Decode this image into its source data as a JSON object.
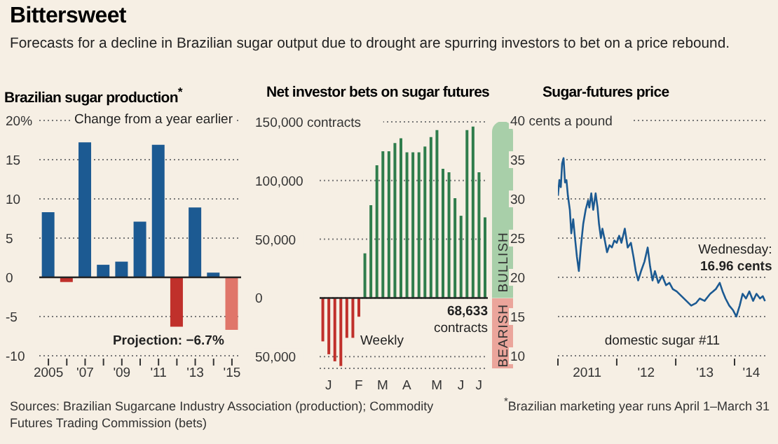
{
  "chart_data": [
    {
      "type": "other",
      "title": "Bittersweet",
      "subtitle": "Forecasts for a decline in Brazilian sugar output due to drought are spurring investors to bet on a price rebound.",
      "annotations": [
        "Sources: Brazilian Sugarcane Industry Association (production); Commodity Futures Trading Commission (bets)",
        "$^{*}$Brazilian marketing year runs April 1–March 31"
      ]
    },
    {
      "type": "bar",
      "title": "Brazilian sugar production$^{*}$",
      "categories": [
        "2005",
        null,
        "'07",
        null,
        "'09",
        null,
        "'11",
        null,
        "'13",
        null,
        "'15"
      ],
      "values": [
        8.3,
        -0.6,
        17.2,
        1.6,
        2.0,
        7.1,
        16.9,
        -6.3,
        8.9,
        0.6,
        -6.7
      ],
      "colors": [
        "#1c5a92",
        "#c0302b",
        "#1c5a92",
        "#1c5a92",
        "#1c5a92",
        "#1c5a92",
        "#1c5a92",
        "#c0302b",
        "#1c5a92",
        "#1c5a92",
        "#e0766a"
      ],
      "ylim": [
        -10,
        20
      ],
      "yticks": [
        -10,
        -5,
        0,
        5,
        10,
        15,
        {
          "value": 20,
          "label": "20%"
        }
      ],
      "grid": "y",
      "ref_lines": [
        {
          "axis": "y",
          "value": 0,
          "color": "#222222"
        }
      ],
      "annotations": [
        "Change from a year earlier",
        {
          "text": "Projection: −6.7%",
          "x": "'15",
          "y": -6.7
        }
      ]
    },
    {
      "type": "bar",
      "title": "Net investor bets on sugar futures",
      "categories": [
        null,
        "J",
        null,
        null,
        null,
        null,
        "F",
        null,
        null,
        null,
        "M",
        null,
        null,
        null,
        "A",
        null,
        null,
        null,
        null,
        "M",
        null,
        null,
        null,
        "J",
        null,
        null,
        "J",
        null
      ],
      "values": [
        -37000,
        -48000,
        -54000,
        -58000,
        -34000,
        -34000,
        -16000,
        38000,
        79000,
        113000,
        125000,
        125000,
        132000,
        136000,
        124000,
        124000,
        124000,
        129000,
        137000,
        143000,
        110000,
        107000,
        85000,
        70000,
        143000,
        146000,
        107000,
        68633
      ],
      "colors": [
        "#c0302b",
        "#c0302b",
        "#c0302b",
        "#c0302b",
        "#c0302b",
        "#c0302b",
        "#c0302b",
        "#2f7d4c",
        "#2f7d4c",
        "#2f7d4c",
        "#2f7d4c",
        "#2f7d4c",
        "#2f7d4c",
        "#2f7d4c",
        "#2f7d4c",
        "#2f7d4c",
        "#2f7d4c",
        "#2f7d4c",
        "#2f7d4c",
        "#2f7d4c",
        "#2f7d4c",
        "#2f7d4c",
        "#2f7d4c",
        "#2f7d4c",
        "#2f7d4c",
        "#2f7d4c",
        "#2f7d4c",
        "#2f7d4c"
      ],
      "ylim": [
        -60000,
        150000
      ],
      "yticks": [
        {
          "value": -50000,
          "label": "50,000"
        },
        0,
        {
          "value": 50000,
          "label": "50,000"
        },
        {
          "value": 100000,
          "label": "100,000"
        },
        {
          "value": 150000,
          "label": "150,000 contracts"
        }
      ],
      "grid": "y",
      "ref_lines": [
        {
          "axis": "y",
          "value": 0,
          "color": "#222222"
        }
      ],
      "annotations": [
        "Weekly",
        "68,633 contracts",
        "BULLISH",
        "BEARISH"
      ]
    },
    {
      "type": "line",
      "title": "Sugar-futures price",
      "color": "#1c5a92",
      "x": [
        "2011-01-01",
        "2011-01-10",
        "2011-01-19",
        "2011-01-27",
        "2011-02-05",
        "2011-02-14",
        "2011-02-23",
        "2011-03-04",
        "2011-03-16",
        "2011-03-25",
        "2011-04-06",
        "2011-04-17",
        "2011-04-29",
        "2011-05-11",
        "2011-05-23",
        "2011-06-07",
        "2011-06-22",
        "2011-07-07",
        "2011-07-15",
        "2011-07-27",
        "2011-08-08",
        "2011-08-23",
        "2011-09-04",
        "2011-09-13",
        "2011-09-25",
        "2011-10-04",
        "2011-10-19",
        "2011-11-02",
        "2011-11-17",
        "2011-12-02",
        "2011-12-17",
        "2012-01-01",
        "2012-01-16",
        "2012-01-30",
        "2012-02-20",
        "2012-03-09",
        "2012-03-29",
        "2012-04-14",
        "2012-04-28",
        "2012-05-13",
        "2012-05-31",
        "2012-06-21",
        "2012-07-11",
        "2012-07-26",
        "2012-08-10",
        "2012-08-25",
        "2012-09-15",
        "2012-10-09",
        "2012-11-02",
        "2012-11-23",
        "2012-12-14",
        "2013-01-07",
        "2013-02-06",
        "2013-03-08",
        "2013-04-07",
        "2013-05-06",
        "2013-05-30",
        "2013-06-29",
        "2013-08-03",
        "2013-09-07",
        "2013-10-01",
        "2013-10-19",
        "2013-11-06",
        "2013-11-29",
        "2013-12-23",
        "2014-01-12",
        "2014-02-02",
        "2014-02-20",
        "2014-03-13",
        "2014-04-03",
        "2014-04-26",
        "2014-05-17",
        "2014-06-08",
        "2014-06-25",
        "2014-07-09"
      ],
      "values": [
        30.4,
        32.4,
        31.5,
        34.5,
        35.2,
        32.1,
        32.4,
        30.4,
        28.6,
        25.6,
        27.4,
        25.0,
        22.6,
        20.8,
        23.8,
        26.8,
        28.6,
        29.8,
        28.9,
        30.7,
        28.6,
        30.7,
        28.9,
        26.8,
        25.0,
        26.2,
        24.7,
        23.2,
        24.1,
        23.8,
        24.7,
        24.4,
        25.3,
        24.4,
        26.2,
        23.8,
        24.4,
        22.6,
        20.8,
        19.6,
        20.8,
        22.0,
        23.8,
        21.4,
        19.6,
        20.8,
        19.3,
        20.2,
        19.0,
        19.3,
        18.5,
        18.2,
        17.6,
        17.0,
        16.4,
        16.7,
        17.3,
        17.0,
        17.9,
        18.5,
        19.3,
        18.2,
        17.3,
        16.4,
        15.8,
        15.0,
        16.4,
        17.9,
        17.3,
        18.2,
        17.0,
        17.9,
        17.3,
        17.6,
        16.96
      ],
      "xlim": [
        "2011-01-01",
        "2014-07-20"
      ],
      "xticks": [
        {
          "value": "2011-01-01",
          "label": null
        },
        {
          "value": "2011-07-01",
          "label": "2011"
        },
        {
          "value": "2012-01-01",
          "label": null
        },
        {
          "value": "2012-07-01",
          "label": "'12"
        },
        {
          "value": "2013-01-01",
          "label": null
        },
        {
          "value": "2013-07-01",
          "label": "'13"
        },
        {
          "value": "2014-01-01",
          "label": null
        },
        {
          "value": "2014-04-15",
          "label": "'14"
        }
      ],
      "ylim": [
        10,
        40
      ],
      "yticks": [
        10,
        15,
        20,
        25,
        30,
        35,
        {
          "value": 40,
          "label": "40 cents a pound"
        }
      ],
      "grid": "y",
      "annotations": [
        {
          "text": "Wednesday: 16.96 cents",
          "x": "2014-07-09",
          "y": 16.96
        },
        "domestic sugar #11"
      ]
    }
  ]
}
